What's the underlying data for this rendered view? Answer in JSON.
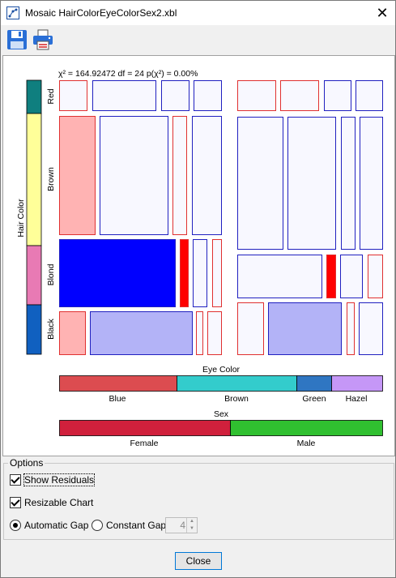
{
  "window": {
    "title": "Mosaic HairColorEyeColorSex2.xbl"
  },
  "toolbar": {
    "save_icon": "save-icon",
    "print_icon": "print-icon"
  },
  "chart_data": {
    "type": "mosaic",
    "stat_text": "χ² = 164.92472 df = 24 p(χ²) = 0.00%",
    "y_variable": "Hair Color",
    "y_categories": [
      "Red",
      "Brown",
      "Blond",
      "Black"
    ],
    "y_colors": [
      "#0f7f7f",
      "#ffff99",
      "#e87ab4",
      "#1060c0"
    ],
    "eye_variable": "Eye Color",
    "eye_categories": [
      "Blue",
      "Brown",
      "Green",
      "Hazel"
    ],
    "eye_colors": [
      "#dc4c50",
      "#33cccc",
      "#2f76c2",
      "#c597f7"
    ],
    "sex_variable": "Sex",
    "sex_categories": [
      "Female",
      "Male"
    ],
    "sex_colors": [
      "#d0203c",
      "#30c030"
    ],
    "residual_colors": {
      "strong_positive": "#0000ff",
      "mild_positive": "#b3b3f7",
      "neutral": "#f8f8ff",
      "mild_negative": "#ffb3b3",
      "strong_negative": "#ff0000"
    }
  },
  "options": {
    "legend": "Options",
    "show_residuals": "Show Residuals",
    "resizable_chart": "Resizable Chart",
    "automatic_gap": "Automatic Gap",
    "constant_gap": "Constant Gap",
    "gap_value": "4"
  },
  "footer": {
    "close_label": "Close"
  }
}
